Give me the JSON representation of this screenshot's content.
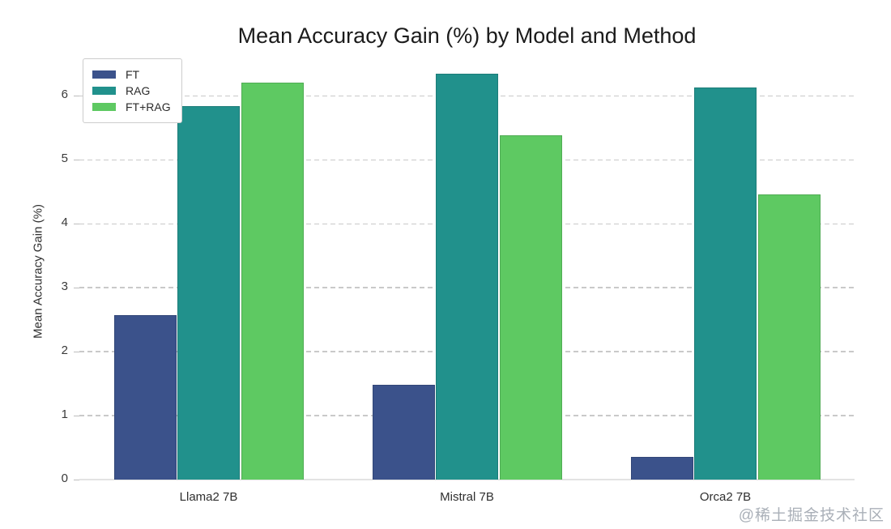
{
  "title": "Mean Accuracy Gain (%) by Model and Method",
  "watermark": "@稀土掘金技术社区",
  "chart_data": {
    "type": "bar",
    "title": "Mean Accuracy Gain (%) by Model and Method",
    "categories": [
      "Llama2 7B",
      "Mistral 7B",
      "Orca2 7B"
    ],
    "series": [
      {
        "name": "FT",
        "color": "#3b528b",
        "values": [
          2.57,
          1.48,
          0.35
        ]
      },
      {
        "name": "RAG",
        "color": "#21918c",
        "values": [
          5.84,
          6.35,
          6.13
        ]
      },
      {
        "name": "FT+RAG",
        "color": "#5ec962",
        "values": [
          6.21,
          5.39,
          4.46
        ]
      }
    ],
    "xlabel": "",
    "ylabel": "Mean Accuracy Gain (%)",
    "ylim": [
      0,
      6.5
    ],
    "yticks": [
      0,
      1,
      2,
      3,
      4,
      5,
      6
    ],
    "grid": "dashed horizontal gridlines",
    "legend_position": "upper-left"
  }
}
